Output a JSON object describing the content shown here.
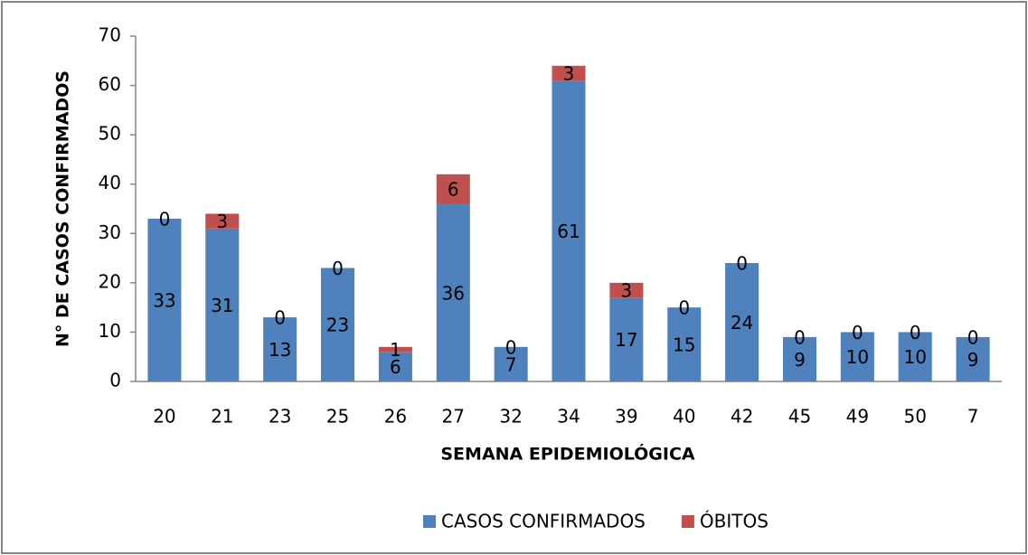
{
  "chart_data": {
    "type": "stacked_bar",
    "categories": [
      "20",
      "21",
      "23",
      "25",
      "26",
      "27",
      "32",
      "34",
      "39",
      "40",
      "42",
      "45",
      "49",
      "50",
      "7"
    ],
    "series": [
      {
        "name": "CASOS CONFIRMADOS",
        "color": "#4f81bd",
        "values": [
          33,
          31,
          13,
          23,
          6,
          36,
          7,
          61,
          17,
          15,
          24,
          9,
          10,
          10,
          9
        ]
      },
      {
        "name": "ÓBITOS",
        "color": "#c0504d",
        "values": [
          0,
          3,
          0,
          0,
          1,
          6,
          0,
          3,
          3,
          0,
          0,
          0,
          0,
          0,
          0
        ]
      }
    ],
    "x_label": "SEMANA EPIDEMIOLÓGICA",
    "y_label": "N° DE CASOS CONFIRMADOS",
    "ylim": [
      0,
      70
    ],
    "yticks": [
      0,
      10,
      20,
      30,
      40,
      50,
      60,
      70
    ],
    "grid": false,
    "legend": "bottom"
  }
}
